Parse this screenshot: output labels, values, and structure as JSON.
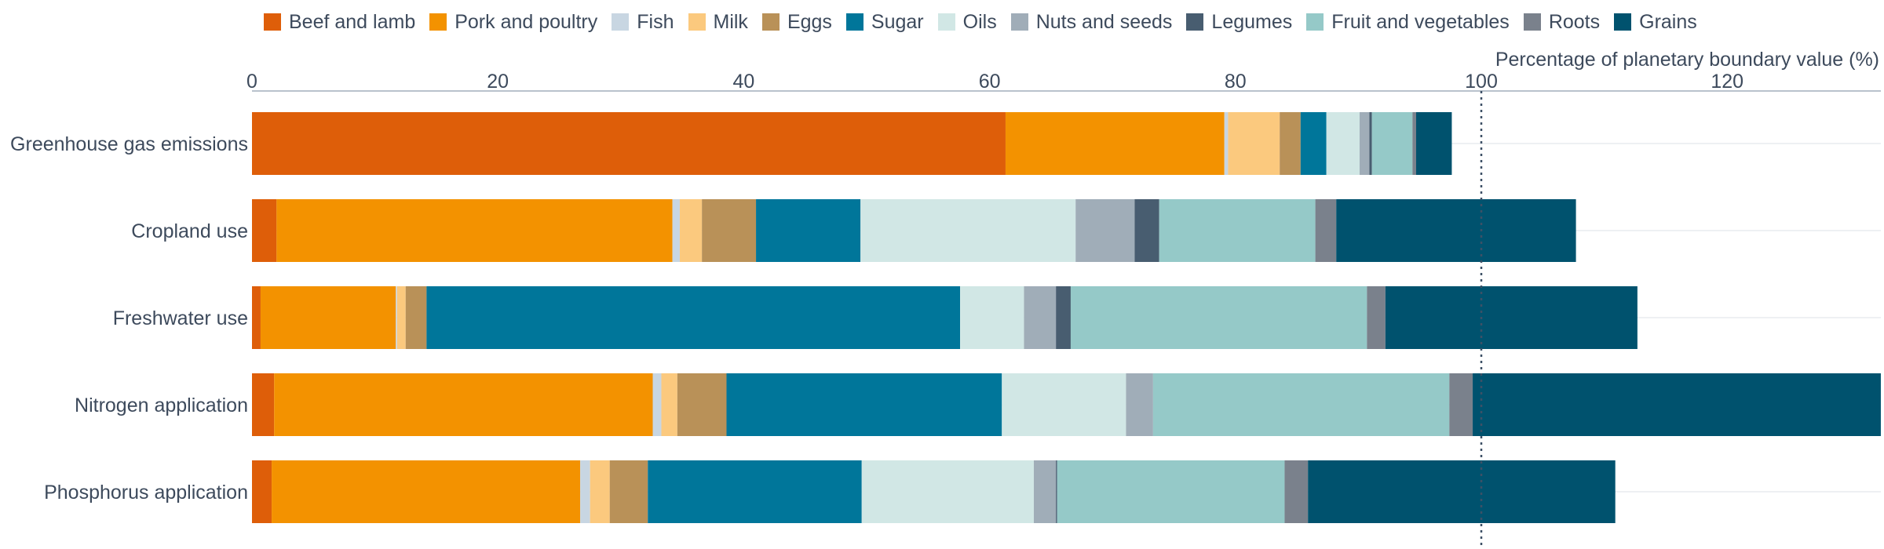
{
  "chart_data": {
    "type": "bar",
    "orientation": "horizontal",
    "stacked": true,
    "categories": [
      "Greenhouse gas emissions",
      "Cropland use",
      "Freshwater use",
      "Nitrogen application",
      "Phosphorus application"
    ],
    "series": [
      {
        "name": "Beef and lamb",
        "color": "#de5e09",
        "values": [
          61.3,
          2.0,
          0.7,
          1.8,
          1.6
        ]
      },
      {
        "name": "Pork and poultry",
        "color": "#f39200",
        "values": [
          17.8,
          32.2,
          11.0,
          30.8,
          25.1
        ]
      },
      {
        "name": "Fish",
        "color": "#c8d6e2",
        "values": [
          0.3,
          0.6,
          0.1,
          0.7,
          0.8
        ]
      },
      {
        "name": "Milk",
        "color": "#fbc97e",
        "values": [
          4.2,
          1.8,
          0.7,
          1.3,
          1.6
        ]
      },
      {
        "name": "Eggs",
        "color": "#b99158",
        "values": [
          1.7,
          4.4,
          1.7,
          4.0,
          3.1
        ]
      },
      {
        "name": "Sugar",
        "color": "#00769a",
        "values": [
          2.1,
          8.5,
          43.4,
          22.4,
          17.4
        ]
      },
      {
        "name": "Oils",
        "color": "#d1e7e5",
        "values": [
          2.7,
          17.5,
          5.2,
          10.1,
          14.0
        ]
      },
      {
        "name": "Nuts and seeds",
        "color": "#a0adb8",
        "values": [
          0.8,
          4.8,
          2.6,
          2.2,
          1.8
        ]
      },
      {
        "name": "Legumes",
        "color": "#485d70",
        "values": [
          0.2,
          2.0,
          1.2,
          0.0,
          0.1
        ]
      },
      {
        "name": "Fruit and vegetables",
        "color": "#95c9c8",
        "values": [
          3.3,
          12.7,
          24.1,
          24.1,
          18.5
        ]
      },
      {
        "name": "Roots",
        "color": "#7a818c",
        "values": [
          0.3,
          1.7,
          1.5,
          1.9,
          1.9
        ]
      },
      {
        "name": "Grains",
        "color": "#00526e",
        "values": [
          2.9,
          19.5,
          20.5,
          33.2,
          25.0
        ]
      }
    ],
    "xlabel": "Percentage of planetary boundary value (%)",
    "xlim": [
      0,
      132.5
    ],
    "xticks": [
      0,
      20,
      40,
      60,
      80,
      100,
      120
    ],
    "reference_line": {
      "x": 100,
      "style": "dotted"
    },
    "grid": true,
    "legend_position": "top"
  }
}
